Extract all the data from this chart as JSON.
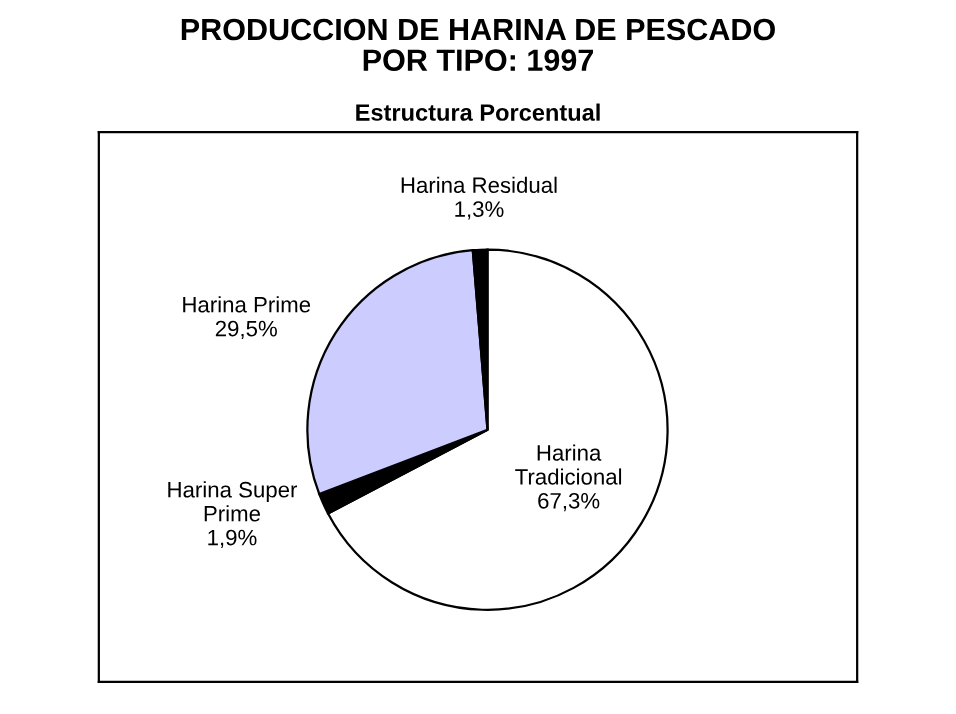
{
  "chart_data": {
    "type": "pie",
    "title": "PRODUCCION DE HARINA DE PESCADO\nPOR TIPO: 1997",
    "subtitle": "Estructura Porcentual",
    "categories": [
      "Harina\nTradicional",
      "Harina Super\nPrime",
      "Harina Prime",
      "Harina Residual"
    ],
    "values": [
      67.3,
      1.9,
      29.5,
      1.3
    ],
    "value_labels": [
      "67,3%",
      "1,9%",
      "29,5%",
      "1,3%"
    ],
    "colors": [
      "#ffffff",
      "#000000",
      "#ccccff",
      "#000000"
    ],
    "legend": false
  }
}
